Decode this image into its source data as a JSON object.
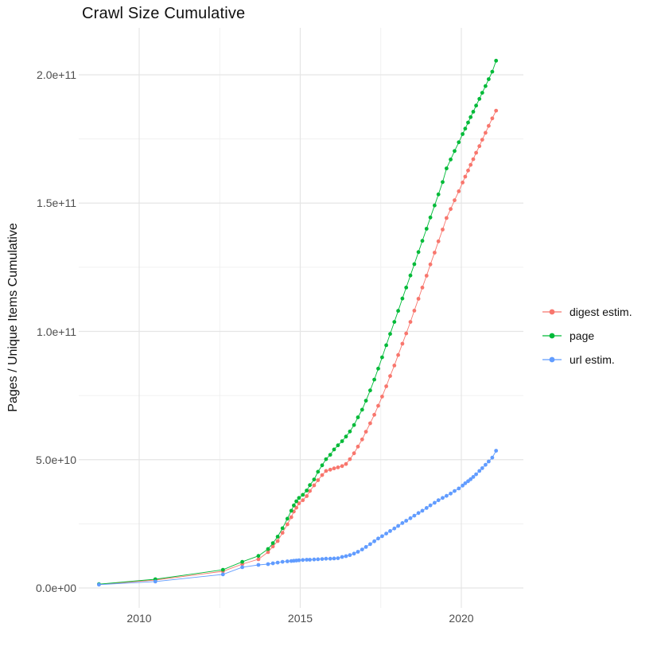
{
  "title": "Crawl Size Cumulative",
  "legend": {
    "items": [
      {
        "label": "digest estim.",
        "color": "#F8766D"
      },
      {
        "label": "page",
        "color": "#00BA38"
      },
      {
        "label": "url estim.",
        "color": "#619CFF"
      }
    ]
  },
  "colors": {
    "background": "#FFFFFF",
    "grid_major": "#E5E5E5",
    "grid_minor": "#F0F0F0",
    "axis_text": "#4D4D4D",
    "title_text": "#111111"
  },
  "chart_data": {
    "type": "line",
    "title": "Crawl Size Cumulative",
    "xlabel": "",
    "ylabel": "Pages / Unique Items Cumulative",
    "x_unit": "crawl date (decimal year)",
    "y_unit": "count (billions, 1e9)",
    "grid": true,
    "legend_position": "right",
    "xlim": [
      2008.3,
      2021.9
    ],
    "ylim_billions": [
      -7,
      218
    ],
    "x_major_ticks": [
      2010,
      2015,
      2020
    ],
    "x_tick_labels": [
      "2010",
      "2015",
      "2020"
    ],
    "x_minor_gridlines": [
      2012.5,
      2017.5
    ],
    "y_major_ticks_billions": [
      0,
      50,
      100,
      150,
      200
    ],
    "y_tick_labels": [
      "0.0e+00",
      "5.0e+10",
      "1.0e+11",
      "1.5e+11",
      "2.0e+11"
    ],
    "y_minor_gridlines_billions": [
      25,
      75,
      125,
      175
    ],
    "x": [
      2008.75,
      2010.5,
      2012.6,
      2013.2,
      2013.7,
      2014.0,
      2014.15,
      2014.3,
      2014.45,
      2014.6,
      2014.72,
      2014.8,
      2014.88,
      2014.96,
      2015.08,
      2015.2,
      2015.3,
      2015.43,
      2015.55,
      2015.68,
      2015.8,
      2015.93,
      2016.05,
      2016.17,
      2016.3,
      2016.42,
      2016.54,
      2016.67,
      2016.79,
      2016.92,
      2017.04,
      2017.17,
      2017.3,
      2017.42,
      2017.54,
      2017.67,
      2017.79,
      2017.92,
      2018.04,
      2018.17,
      2018.29,
      2018.42,
      2018.54,
      2018.67,
      2018.79,
      2018.92,
      2019.04,
      2019.17,
      2019.29,
      2019.42,
      2019.54,
      2019.67,
      2019.79,
      2019.92,
      2020.04,
      2020.12,
      2020.21,
      2020.29,
      2020.37,
      2020.46,
      2020.56,
      2020.65,
      2020.75,
      2020.85,
      2020.96,
      2021.08
    ],
    "series": [
      {
        "name": "digest estim.",
        "color": "#F8766D",
        "values_billions": [
          1.4,
          3.1,
          6.5,
          9.3,
          11.2,
          14.0,
          16.2,
          18.3,
          21.5,
          24.8,
          27.6,
          29.8,
          31.3,
          33.0,
          34.2,
          35.8,
          37.8,
          40.0,
          42.0,
          44.0,
          45.6,
          46.1,
          46.6,
          47.0,
          47.5,
          48.3,
          50.2,
          52.5,
          55.1,
          57.9,
          60.9,
          64.2,
          67.5,
          71.0,
          74.6,
          78.6,
          82.6,
          86.7,
          90.8,
          95.2,
          99.2,
          103.7,
          108.1,
          112.7,
          117.1,
          121.7,
          126.1,
          130.7,
          135.1,
          139.7,
          144.2,
          147.7,
          151.1,
          154.6,
          158.0,
          160.3,
          162.7,
          164.9,
          167.1,
          169.6,
          172.2,
          174.7,
          177.4,
          180.1,
          183.0,
          186.0
        ]
      },
      {
        "name": "page",
        "color": "#00BA38",
        "values_billions": [
          1.5,
          3.4,
          7.1,
          10.2,
          12.5,
          15.2,
          17.5,
          20.0,
          23.3,
          27.0,
          30.1,
          32.2,
          33.8,
          35.1,
          36.3,
          38.0,
          40.1,
          42.3,
          45.3,
          47.8,
          50.2,
          51.9,
          54.0,
          55.6,
          57.2,
          59.0,
          61.0,
          63.5,
          66.5,
          69.5,
          73.0,
          77.0,
          81.2,
          85.5,
          89.9,
          94.6,
          99.0,
          103.7,
          108.0,
          112.8,
          117.1,
          121.8,
          126.2,
          130.9,
          135.3,
          140.0,
          144.4,
          149.1,
          153.4,
          158.2,
          163.5,
          167.0,
          170.3,
          173.7,
          176.9,
          179.0,
          181.4,
          183.5,
          185.6,
          188.0,
          190.6,
          193.0,
          195.6,
          198.3,
          201.2,
          205.5
        ]
      },
      {
        "name": "url estim.",
        "color": "#619CFF",
        "values_billions": [
          1.3,
          2.5,
          5.3,
          8.1,
          9.0,
          9.3,
          9.6,
          9.9,
          10.2,
          10.4,
          10.5,
          10.6,
          10.7,
          10.8,
          10.9,
          11.0,
          11.0,
          11.1,
          11.2,
          11.3,
          11.4,
          11.4,
          11.5,
          11.6,
          12.1,
          12.4,
          12.8,
          13.4,
          14.1,
          15.0,
          16.0,
          17.1,
          18.2,
          19.3,
          20.2,
          21.2,
          22.2,
          23.2,
          24.2,
          25.3,
          26.2,
          27.2,
          28.2,
          29.2,
          30.1,
          31.2,
          32.2,
          33.2,
          34.2,
          35.1,
          35.9,
          36.8,
          37.8,
          38.8,
          39.9,
          40.8,
          41.6,
          42.4,
          43.3,
          44.3,
          45.6,
          46.7,
          48.0,
          49.3,
          50.8,
          53.5
        ]
      }
    ]
  }
}
